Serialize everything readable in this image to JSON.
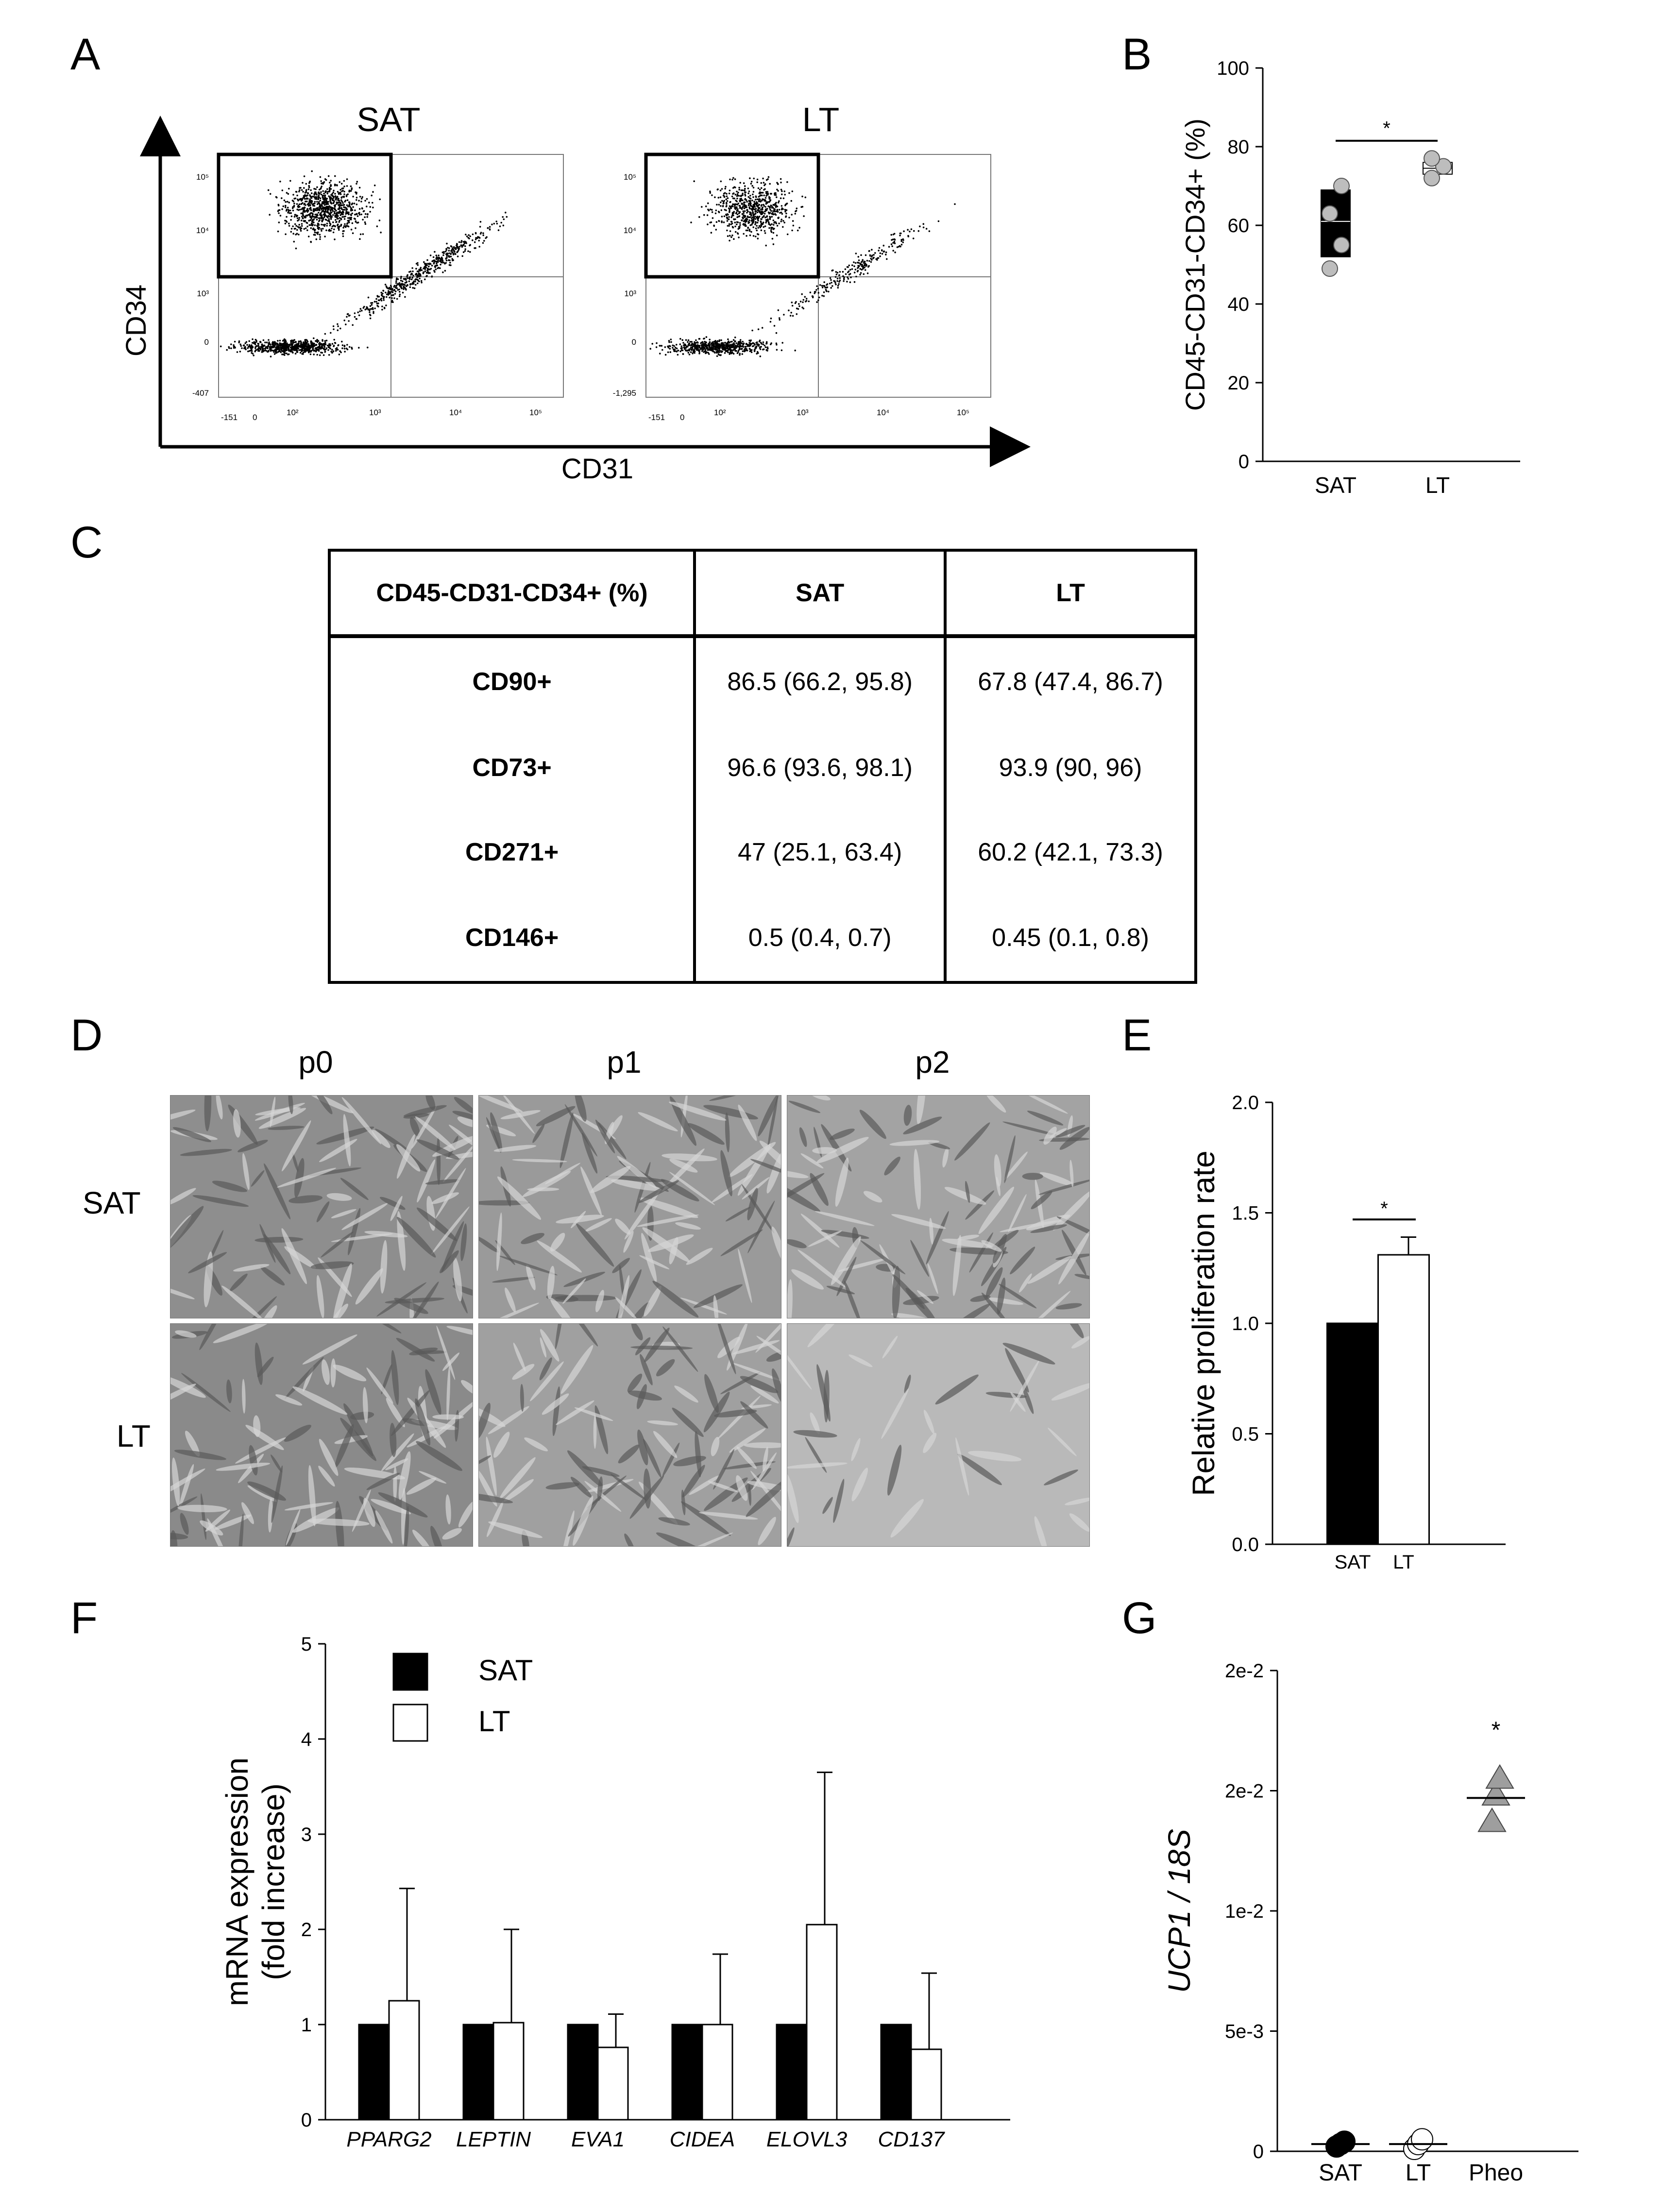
{
  "panels": {
    "A": "A",
    "B": "B",
    "C": "C",
    "D": "D",
    "E": "E",
    "F": "F",
    "G": "G"
  },
  "panelA": {
    "plots": [
      {
        "title": "SAT"
      },
      {
        "title": "LT"
      }
    ],
    "xlabel": "CD31",
    "ylabel": "CD34",
    "xticks": [
      "-151",
      "0",
      "10²",
      "10³",
      "10⁴",
      "10⁵"
    ],
    "yticks_sat": [
      "10⁵",
      "10⁴",
      "10³",
      "0",
      "-407"
    ],
    "yticks_lt": [
      "10⁵",
      "10⁴",
      "10³",
      "0",
      "-1,295"
    ]
  },
  "panelD": {
    "columns": [
      "p0",
      "p1",
      "p2"
    ],
    "rows": [
      "SAT",
      "LT"
    ]
  },
  "table": {
    "header": [
      "CD45-CD31-CD34+ (%)",
      "SAT",
      "LT"
    ],
    "rows": [
      {
        "label": "CD90+",
        "sat": "86.5 (66.2, 95.8)",
        "lt": "67.8 (47.4, 86.7)"
      },
      {
        "label": "CD73+",
        "sat": "96.6 (93.6, 98.1)",
        "lt": "93.9 (90, 96)"
      },
      {
        "label": "CD271+",
        "sat": "47 (25.1, 63.4)",
        "lt": "60.2 (42.1, 73.3)"
      },
      {
        "label": "CD146+",
        "sat": "0.5 (0.4, 0.7)",
        "lt": "0.45 (0.1, 0.8)"
      }
    ]
  },
  "chart_data": [
    {
      "id": "B",
      "type": "box",
      "ylabel": "CD45-CD31-CD34+ (%)",
      "ylim": [
        0,
        100
      ],
      "yticks": [
        0,
        20,
        40,
        60,
        80,
        100
      ],
      "categories": [
        "SAT",
        "LT"
      ],
      "boxes": [
        {
          "name": "SAT",
          "q1": 52,
          "median": 61,
          "q3": 69,
          "points": [
            49,
            55,
            63,
            70
          ],
          "fill": "#000000"
        },
        {
          "name": "LT",
          "q1": 73,
          "median": 74.5,
          "q3": 76,
          "points": [
            72,
            75,
            77
          ],
          "fill": "#ffffff"
        }
      ],
      "significance": "*",
      "colors": {
        "point": "#bdbdbd"
      }
    },
    {
      "id": "E",
      "type": "bar",
      "ylabel": "Relative proliferation rate",
      "ylim": [
        0,
        2.0
      ],
      "yticks": [
        "0.0",
        "0.5",
        "1.0",
        "1.5",
        "2.0"
      ],
      "categories": [
        "SAT",
        "LT"
      ],
      "values": [
        1.0,
        1.31
      ],
      "errors": [
        0,
        0.08
      ],
      "colors": [
        "#000000",
        "#ffffff"
      ],
      "significance": "*"
    },
    {
      "id": "F",
      "type": "bar",
      "ylabel_line1": "mRNA expression",
      "ylabel_line2": "(fold increase)",
      "ylim": [
        0,
        5
      ],
      "yticks": [
        0,
        1,
        2,
        3,
        4,
        5
      ],
      "categories": [
        "PPARG2",
        "LEPTIN",
        "EVA1",
        "CIDEA",
        "ELOVL3",
        "CD137"
      ],
      "series": [
        {
          "name": "SAT",
          "color": "#000000",
          "values": [
            1,
            1,
            1,
            1,
            1,
            1
          ],
          "errors": [
            0,
            0,
            0,
            0,
            0,
            0
          ]
        },
        {
          "name": "LT",
          "color": "#ffffff",
          "values": [
            1.25,
            1.02,
            0.76,
            1.0,
            2.05,
            0.74
          ],
          "errors": [
            1.18,
            0.98,
            0.35,
            0.74,
            1.6,
            0.8
          ]
        }
      ],
      "legend": "top-left"
    },
    {
      "id": "G",
      "type": "scatter",
      "ylabel_italic": "UCP1 / 18S",
      "ylim": [
        0,
        0.02
      ],
      "yticks": [
        {
          "v": 0,
          "label": "0"
        },
        {
          "v": 0.005,
          "label": "5e-3"
        },
        {
          "v": 0.01,
          "label": "1e-2"
        },
        {
          "v": 0.015,
          "label": "2e-2"
        },
        {
          "v": 0.02,
          "label": "2e-2"
        }
      ],
      "categories": [
        "SAT",
        "LT",
        "Pheo"
      ],
      "groups": [
        {
          "name": "SAT",
          "marker": "circle",
          "fill": "#000000",
          "points": [
            0.0002,
            0.0003,
            0.0004
          ],
          "mean": 0.0003
        },
        {
          "name": "LT",
          "marker": "circle",
          "fill": "#ffffff",
          "points": [
            0.0001,
            0.0003,
            0.0005
          ],
          "mean": 0.0003
        },
        {
          "name": "Pheo",
          "marker": "triangle",
          "fill": "#9e9e9e",
          "points": [
            0.0137,
            0.0148,
            0.0155
          ],
          "mean": 0.0147
        }
      ],
      "significance": "*"
    }
  ]
}
